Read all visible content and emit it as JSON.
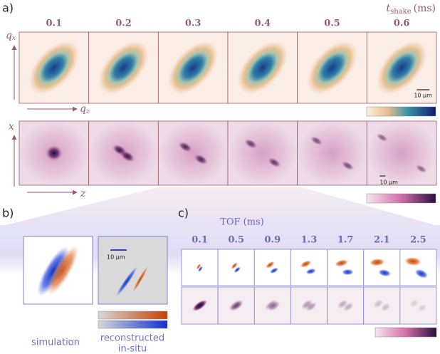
{
  "panel_a": {
    "label": "a)",
    "columns": [
      "0.1",
      "0.2",
      "0.3",
      "0.4",
      "0.5",
      "0.6"
    ],
    "axis_title": {
      "symbol": "t",
      "subscript": "shake",
      "unit": "(ms)"
    },
    "top_y_axis": {
      "symbol": "q",
      "subscript": "x"
    },
    "top_x_axis": {
      "symbol": "q",
      "subscript": "z"
    },
    "top_scale_bar": "10 μm",
    "bottom_y_axis": "x",
    "bottom_x_axis": "z",
    "bottom_scale_bar": "10 μm"
  },
  "panel_b": {
    "label": "b)",
    "scale_bar": "10 μm",
    "captions": [
      "simulation",
      "reconstructed",
      "in-situ"
    ]
  },
  "panel_c": {
    "label": "c)",
    "title": "TOF (ms)",
    "columns": [
      "0.1",
      "0.5",
      "0.9",
      "1.3",
      "1.7",
      "2.1",
      "2.5"
    ]
  }
}
